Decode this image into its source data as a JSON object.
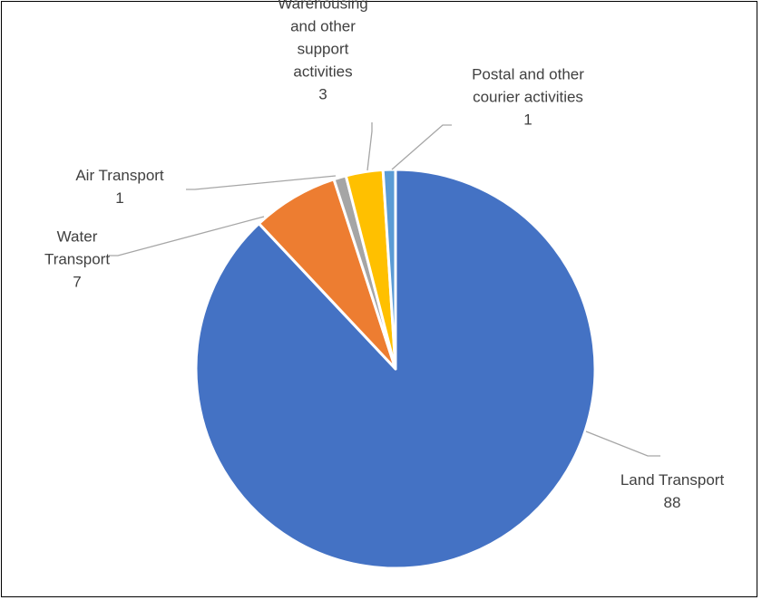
{
  "chart_data": {
    "type": "pie",
    "title": "",
    "start_angle_deg": 0,
    "direction": "clockwise",
    "slices": [
      {
        "label": "Land Transport",
        "value": 88,
        "value_label": "88",
        "color": "#4472C4"
      },
      {
        "label": "Water Transport",
        "value": 7,
        "value_label": "7",
        "color": "#ED7D31"
      },
      {
        "label": "Air Transport",
        "value": 1,
        "value_label": "1",
        "color": "#A5A5A5"
      },
      {
        "label": "Warehousing and other support activities",
        "value": 3,
        "value_label": "3",
        "color": "#FFC000"
      },
      {
        "label": "Postal and other courier activities",
        "value": 1,
        "value_label": "1",
        "color": "#5B9BD5"
      }
    ],
    "legend": "none",
    "data_labels": "outside-with-leader-lines"
  }
}
